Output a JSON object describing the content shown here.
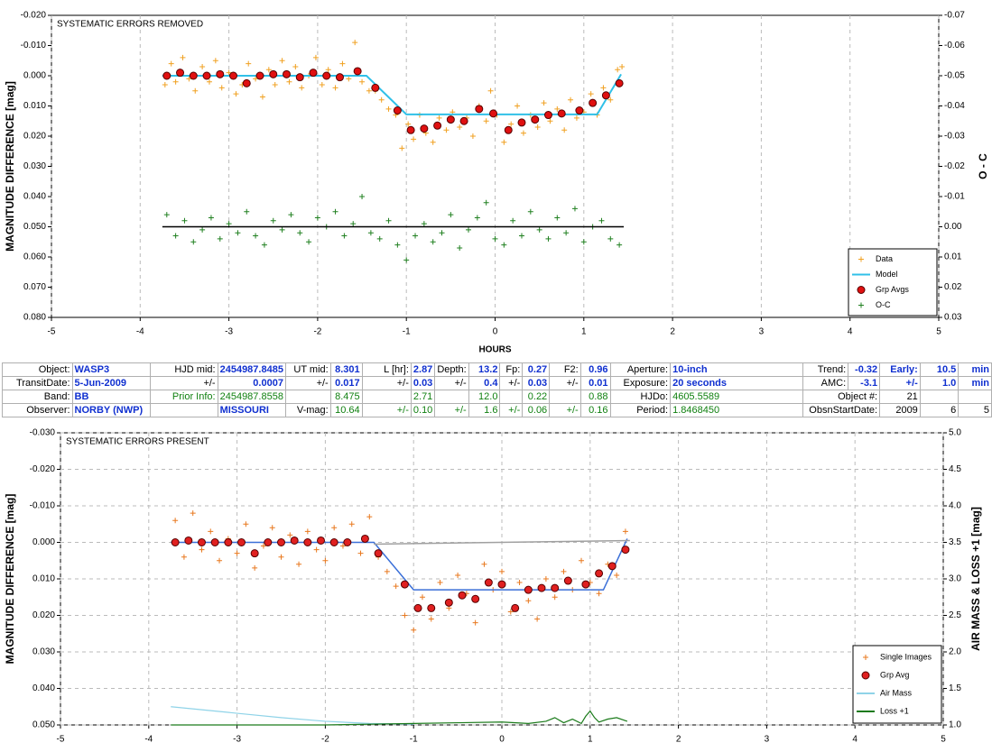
{
  "chart_data": [
    {
      "type": "scatter",
      "title": "SYSTEMATIC ERRORS REMOVED",
      "x_label": "HOURS",
      "y_label": "MAGNITUDE DIFFERENCE [mag]",
      "y2_label": "O - C",
      "xlim": [
        -5,
        5
      ],
      "xticks": [
        -5,
        -4,
        -3,
        -2,
        -1,
        0,
        1,
        2,
        3,
        4,
        5
      ],
      "ylim": [
        0.08,
        -0.02
      ],
      "yticks": [
        {
          "value": -0.02,
          "label": "-0.020"
        },
        {
          "value": -0.01,
          "label": "-0.010"
        },
        {
          "value": 0,
          "label": "0.000"
        },
        {
          "value": 0.01,
          "label": "0.010"
        },
        {
          "value": 0.02,
          "label": "0.020"
        },
        {
          "value": 0.03,
          "label": "0.030"
        },
        {
          "value": 0.04,
          "label": "0.040"
        },
        {
          "value": 0.05,
          "label": "0.050"
        },
        {
          "value": 0.06,
          "label": "0.060"
        },
        {
          "value": 0.07,
          "label": "0.070"
        },
        {
          "value": 0.08,
          "label": "0.080"
        }
      ],
      "y2lim": [
        0.03,
        -0.07
      ],
      "y2ticks": [
        -0.07,
        -0.06,
        -0.05,
        -0.04,
        -0.03,
        -0.02,
        -0.01,
        {
          "value": 0,
          "label": "0.00"
        },
        0.01,
        0.02,
        0.03
      ],
      "grid": "x",
      "legend": "lower right",
      "series": [
        {
          "name": "Data",
          "style": "plus",
          "color": "#f0a020",
          "x": [
            -3.72,
            -3.65,
            -3.6,
            -3.52,
            -3.45,
            -3.38,
            -3.3,
            -3.22,
            -3.15,
            -3.08,
            -3.0,
            -2.92,
            -2.85,
            -2.78,
            -2.7,
            -2.62,
            -2.55,
            -2.48,
            -2.4,
            -2.32,
            -2.25,
            -2.18,
            -2.1,
            -2.02,
            -1.95,
            -1.88,
            -1.8,
            -1.72,
            -1.65,
            -1.58,
            -1.5,
            -1.42,
            -1.35,
            -1.28,
            -1.2,
            -1.12,
            -1.05,
            -0.98,
            -0.92,
            -0.85,
            -0.78,
            -0.7,
            -0.63,
            -0.55,
            -0.48,
            -0.4,
            -0.32,
            -0.25,
            -0.18,
            -0.1,
            -0.05,
            0.02,
            0.1,
            0.18,
            0.25,
            0.32,
            0.4,
            0.48,
            0.55,
            0.62,
            0.7,
            0.78,
            0.85,
            0.92,
            1.0,
            1.08,
            1.15,
            1.22,
            1.3,
            1.38,
            1.43
          ],
          "values": [
            0.003,
            -0.004,
            0.002,
            -0.006,
            0.001,
            0.005,
            -0.003,
            0.002,
            -0.005,
            0.004,
            -0.001,
            0.006,
            0.003,
            -0.004,
            0.001,
            0.007,
            -0.002,
            0.003,
            -0.005,
            0.002,
            -0.003,
            0.004,
            0.0,
            -0.006,
            0.003,
            -0.002,
            0.004,
            -0.004,
            0.001,
            -0.011,
            0.002,
            0.005,
            0.005,
            0.008,
            0.011,
            0.013,
            0.024,
            0.016,
            0.021,
            0.013,
            0.019,
            0.022,
            0.014,
            0.018,
            0.012,
            0.017,
            0.014,
            0.02,
            0.01,
            0.015,
            0.005,
            0.013,
            0.022,
            0.016,
            0.01,
            0.019,
            0.013,
            0.017,
            0.009,
            0.015,
            0.011,
            0.018,
            0.008,
            0.014,
            0.012,
            0.006,
            0.013,
            0.004,
            0.008,
            -0.002,
            -0.003
          ]
        },
        {
          "name": "Model",
          "style": "line",
          "color": "#30c0e8",
          "x": [
            -3.75,
            -1.45,
            -1.0,
            1.15,
            1.42
          ],
          "values": [
            0,
            0,
            0.0128,
            0.0128,
            -0.0005
          ]
        },
        {
          "name": "Grp Avgs",
          "style": "circle",
          "color": "#e01010",
          "x": [
            -3.7,
            -3.55,
            -3.4,
            -3.25,
            -3.1,
            -2.95,
            -2.8,
            -2.65,
            -2.5,
            -2.35,
            -2.2,
            -2.05,
            -1.9,
            -1.75,
            -1.55,
            -1.35,
            -1.1,
            -0.95,
            -0.8,
            -0.65,
            -0.5,
            -0.35,
            -0.18,
            -0.02,
            0.15,
            0.3,
            0.45,
            0.6,
            0.75,
            0.95,
            1.1,
            1.25,
            1.4
          ],
          "values": [
            0,
            -0.001,
            0,
            0,
            -0.0005,
            0,
            0.0025,
            0,
            -0.0005,
            -0.0005,
            0.0005,
            -0.001,
            0,
            0.0005,
            -0.0015,
            0.004,
            0.0115,
            0.018,
            0.0175,
            0.0165,
            0.0145,
            0.015,
            0.011,
            0.0125,
            0.018,
            0.0155,
            0.0145,
            0.013,
            0.0125,
            0.0115,
            0.009,
            0.0065,
            0.0025
          ]
        },
        {
          "name": "O-C",
          "style": "plus",
          "color": "#208020",
          "axis": "y2",
          "x": [
            -3.7,
            -3.6,
            -3.5,
            -3.4,
            -3.3,
            -3.2,
            -3.1,
            -3.0,
            -2.9,
            -2.8,
            -2.7,
            -2.6,
            -2.5,
            -2.4,
            -2.3,
            -2.2,
            -2.1,
            -2.0,
            -1.9,
            -1.8,
            -1.7,
            -1.6,
            -1.5,
            -1.4,
            -1.3,
            -1.2,
            -1.1,
            -1.0,
            -0.9,
            -0.8,
            -0.7,
            -0.6,
            -0.5,
            -0.4,
            -0.3,
            -0.2,
            -0.1,
            0.0,
            0.1,
            0.2,
            0.3,
            0.4,
            0.5,
            0.6,
            0.7,
            0.8,
            0.9,
            1.0,
            1.1,
            1.2,
            1.3,
            1.4
          ],
          "values": [
            -0.004,
            0.003,
            -0.002,
            0.005,
            0.001,
            -0.003,
            0.004,
            -0.001,
            0.002,
            -0.005,
            0.003,
            0.006,
            -0.002,
            0.001,
            -0.004,
            0.002,
            0.005,
            -0.003,
            0.0,
            -0.005,
            0.003,
            -0.001,
            -0.01,
            0.002,
            0.004,
            -0.002,
            0.006,
            0.011,
            0.003,
            -0.001,
            0.005,
            0.002,
            -0.004,
            0.007,
            0.001,
            -0.003,
            -0.008,
            0.004,
            0.006,
            -0.002,
            0.003,
            -0.005,
            0.001,
            0.004,
            -0.003,
            0.002,
            -0.006,
            0.005,
            0.0,
            -0.002,
            0.004,
            0.006
          ]
        }
      ],
      "lines": [
        {
          "color": "#000000",
          "axis": "y2",
          "x": [
            -3.75,
            1.45
          ],
          "values": [
            0,
            0
          ]
        }
      ]
    },
    {
      "type": "scatter",
      "title": "SYSTEMATIC ERRORS PRESENT",
      "y_label": "MAGNITUDE DIFFERENCE [mag]",
      "y2_label": "AIR MASS & LOSS +1 [mag]",
      "xlim": [
        -5,
        5
      ],
      "xticks": [
        -5,
        -4,
        -3,
        -2,
        -1,
        0,
        1,
        2,
        3,
        4,
        5
      ],
      "ylim": [
        0.05,
        -0.03
      ],
      "yticks": [
        {
          "value": -0.03,
          "label": "-0.030"
        },
        {
          "value": -0.02,
          "label": "-0.020"
        },
        {
          "value": -0.01,
          "label": "-0.010"
        },
        {
          "value": 0,
          "label": "0.000"
        },
        {
          "value": 0.01,
          "label": "0.010"
        },
        {
          "value": 0.02,
          "label": "0.020"
        },
        {
          "value": 0.03,
          "label": "0.030"
        },
        {
          "value": 0.04,
          "label": "0.040"
        },
        {
          "value": 0.05,
          "label": "0.050"
        }
      ],
      "y2lim": [
        1,
        5
      ],
      "y2ticks": [
        {
          "value": 1,
          "label": "1.0"
        },
        1.5,
        {
          "value": 2,
          "label": "2.0"
        },
        2.5,
        {
          "value": 3,
          "label": "3.0"
        },
        3.5,
        {
          "value": 4,
          "label": "4.0"
        },
        4.5,
        {
          "value": 5,
          "label": "5.0"
        }
      ],
      "grid": "both",
      "legend": "lower right",
      "series": [
        {
          "name": "Single Images",
          "style": "plus",
          "color": "#e8781e",
          "x": [
            -3.7,
            -3.6,
            -3.5,
            -3.4,
            -3.3,
            -3.2,
            -3.1,
            -3.0,
            -2.9,
            -2.8,
            -2.7,
            -2.6,
            -2.5,
            -2.4,
            -2.3,
            -2.2,
            -2.1,
            -2.0,
            -1.9,
            -1.8,
            -1.7,
            -1.6,
            -1.5,
            -1.4,
            -1.3,
            -1.2,
            -1.1,
            -1.0,
            -0.9,
            -0.8,
            -0.7,
            -0.6,
            -0.5,
            -0.4,
            -0.3,
            -0.2,
            -0.1,
            0.0,
            0.1,
            0.2,
            0.3,
            0.4,
            0.5,
            0.6,
            0.7,
            0.8,
            0.9,
            1.0,
            1.1,
            1.2,
            1.3,
            1.4
          ],
          "values": [
            -0.006,
            0.004,
            -0.008,
            0.002,
            -0.003,
            0.005,
            -0.001,
            0.003,
            -0.005,
            0.007,
            0.001,
            -0.004,
            0.004,
            -0.002,
            0.006,
            -0.003,
            0.002,
            0.005,
            -0.004,
            0.001,
            -0.005,
            0.003,
            -0.007,
            0.004,
            0.008,
            0.012,
            0.02,
            0.024,
            0.015,
            0.021,
            0.011,
            0.018,
            0.009,
            0.014,
            0.022,
            0.006,
            0.013,
            0.008,
            0.019,
            0.011,
            0.016,
            0.021,
            0.01,
            0.015,
            0.008,
            0.013,
            0.005,
            0.011,
            0.014,
            0.006,
            0.009,
            -0.003
          ]
        },
        {
          "name": "Grp Avg",
          "style": "circle",
          "color": "#e02020",
          "x": [
            -3.7,
            -3.55,
            -3.4,
            -3.25,
            -3.1,
            -2.95,
            -2.8,
            -2.65,
            -2.5,
            -2.35,
            -2.2,
            -2.05,
            -1.9,
            -1.75,
            -1.55,
            -1.4,
            -1.1,
            -0.95,
            -0.8,
            -0.6,
            -0.45,
            -0.3,
            -0.15,
            0.0,
            0.15,
            0.3,
            0.45,
            0.6,
            0.75,
            0.95,
            1.1,
            1.25,
            1.4
          ],
          "values": [
            0,
            -0.0005,
            0,
            0,
            0,
            0,
            0.003,
            0,
            0,
            -0.0005,
            0,
            -0.0005,
            0,
            0,
            -0.001,
            0.003,
            0.0115,
            0.018,
            0.018,
            0.0165,
            0.0145,
            0.0155,
            0.011,
            0.0115,
            0.018,
            0.013,
            0.0125,
            0.0125,
            0.0105,
            0.0115,
            0.0085,
            0.0065,
            0.002
          ]
        },
        {
          "name": "Air Mass",
          "style": "line",
          "color": "#8fd3e8",
          "axis": "y2",
          "x": [
            -3.75,
            -3,
            -2.5,
            -2,
            -1.5,
            -1
          ],
          "values": [
            1.25,
            1.16,
            1.1,
            1.05,
            1.02,
            1.01
          ]
        },
        {
          "name": "Loss +1",
          "style": "line",
          "color": "#1a7a1a",
          "axis": "y2",
          "x": [
            -3.75,
            -3,
            -2,
            -1.5,
            -1,
            -0.5,
            0,
            0.3,
            0.5,
            0.6,
            0.7,
            0.8,
            0.9,
            0.95,
            1.0,
            1.05,
            1.1,
            1.2,
            1.3,
            1.42
          ],
          "values": [
            1.0,
            1.0,
            1.0,
            1.01,
            1.02,
            1.03,
            1.04,
            1.02,
            1.05,
            1.1,
            1.03,
            1.08,
            1.02,
            1.12,
            1.19,
            1.1,
            1.04,
            1.08,
            1.1,
            1.05
          ]
        }
      ],
      "lines": [
        {
          "color": "#3a6fd8",
          "x": [
            -3.75,
            -1.45,
            -1.0,
            1.15,
            1.42
          ],
          "values": [
            0,
            0,
            0.013,
            0.013,
            -0.001
          ]
        },
        {
          "color": "#a0a0a0",
          "x": [
            -1.45,
            1.45
          ],
          "values": [
            0.0005,
            -0.0005
          ]
        }
      ]
    }
  ],
  "table": {
    "rows": [
      [
        "Object:",
        "WASP3",
        "HJD mid:",
        "2454987.8485",
        "UT mid:",
        "8.301",
        "L [hr]:",
        "2.87",
        "Depth:",
        "13.2",
        "Fp:",
        "0.27",
        "F2:",
        "0.96",
        "Aperture:",
        "10-inch",
        "Trend:",
        "-0.32",
        "Early:",
        "10.5",
        "min"
      ],
      [
        "TransitDate:",
        "5-Jun-2009",
        "+/-",
        "0.0007",
        "+/-",
        "0.017",
        "+/-",
        "0.03",
        "+/-",
        "0.4",
        "+/-",
        "0.03",
        "+/-",
        "0.01",
        "Exposure:",
        "20 seconds",
        "AMC:",
        "-3.1",
        "+/-",
        "1.0",
        "min"
      ],
      [
        "Band:",
        "BB",
        "Prior Info:",
        "2454987.8558",
        "8.475",
        "2.71",
        "12.0",
        "0.22",
        "0.88",
        "HJDo:",
        "4605.5589",
        "Object #:",
        "21"
      ],
      [
        "Observer:",
        "NORBY (NWP)",
        "MISSOURI",
        "V-mag:",
        "10.64",
        "+/-",
        "0.10",
        "+/-",
        "1.6",
        "+/-",
        "0.06",
        "+/-",
        "0.16",
        "Period:",
        "1.8468450",
        "ObsnStartDate:",
        "2009",
        "6",
        "5"
      ]
    ]
  }
}
